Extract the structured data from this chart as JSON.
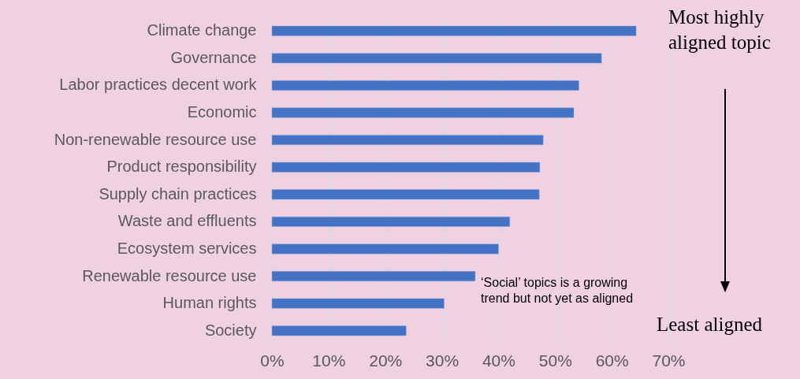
{
  "chart_data": {
    "type": "bar",
    "orientation": "horizontal",
    "categories": [
      "Climate change",
      "Governance",
      "Labor practices decent work",
      "Economic",
      "Non-renewable resource use",
      "Product responsibility",
      "Supply chain practices",
      "Waste and effluents",
      "Ecosystem services",
      "Renewable resource use",
      "Human rights",
      "Society"
    ],
    "values": [
      64.3,
      58.2,
      54.2,
      53.3,
      47.9,
      47.3,
      47.2,
      42.0,
      40.0,
      35.9,
      30.4,
      23.7
    ],
    "color": "#4472c4",
    "xlim": [
      0,
      70
    ],
    "xticks": [
      {
        "value": 0,
        "label": "0%"
      },
      {
        "value": 10,
        "label": "10%"
      },
      {
        "value": 20,
        "label": "20%"
      },
      {
        "value": 30,
        "label": "30%"
      },
      {
        "value": 40,
        "label": "40%"
      },
      {
        "value": 50,
        "label": "50%"
      },
      {
        "value": 60,
        "label": "60%"
      },
      {
        "value": 70,
        "label": "70%"
      }
    ],
    "grid": "x",
    "annotations": [
      "Most highly aligned topic",
      "Least aligned",
      "‘Social’ topics is a growing trend but  not yet as aligned"
    ]
  }
}
